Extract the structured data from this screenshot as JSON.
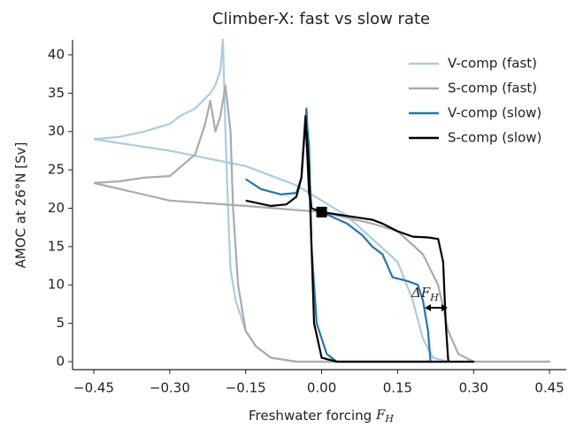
{
  "chart_data": {
    "type": "line",
    "title": "Climber-X: fast vs slow rate",
    "xlabel": "Freshwater forcing",
    "xlabel_symbol": "F",
    "xlabel_subscript": "H",
    "ylabel": "AMOC at 26°N [Sv]",
    "annotation": "Δ",
    "annotation_symbol": "F",
    "annotation_subscript": "H",
    "xlim": [
      -0.492,
      0.483
    ],
    "ylim": [
      -1.04,
      41.96
    ],
    "xticks": [
      {
        "value": -0.45,
        "label": "−0.45"
      },
      {
        "value": -0.3,
        "label": "−0.30"
      },
      {
        "value": -0.15,
        "label": "−0.15"
      },
      {
        "value": 0,
        "label": "0.00"
      },
      0.15,
      {
        "value": 0.3,
        "label": "0.30"
      },
      0.45
    ],
    "yticks": [
      0,
      5,
      10,
      15,
      20,
      25,
      30,
      35,
      40
    ],
    "legend": "upper right",
    "grid": false,
    "marker": {
      "x": 0,
      "y": 19.5,
      "color": "#000000"
    },
    "series": [
      {
        "name": "V-comp (fast)",
        "color": "#a9cce3",
        "x": [
          -0.45,
          -0.35,
          -0.3,
          -0.15,
          -0.05,
          0,
          0.05,
          0.1,
          0.15,
          0.18,
          0.2,
          0.22,
          0.25,
          0.45,
          -0.05,
          -0.1,
          -0.13,
          -0.15,
          -0.17,
          -0.18,
          -0.185,
          -0.19,
          -0.195,
          -0.2,
          -0.21,
          -0.22,
          -0.25,
          -0.28,
          -0.3,
          -0.35,
          -0.4,
          -0.45
        ],
        "values": [
          29,
          28,
          27.5,
          25.5,
          23,
          21,
          19,
          16,
          13,
          8,
          3,
          0.5,
          0,
          0,
          0,
          0.5,
          2,
          4,
          8,
          12,
          20,
          30,
          42,
          38,
          36,
          35,
          33,
          32,
          31,
          30,
          29.3,
          29
        ]
      },
      {
        "name": "S-comp (fast)",
        "color": "#aaaaaa",
        "x": [
          -0.45,
          -0.3,
          -0.15,
          0,
          0.1,
          0.15,
          0.2,
          0.23,
          0.25,
          0.27,
          0.3,
          0.45,
          0,
          -0.05,
          -0.1,
          -0.13,
          -0.15,
          -0.165,
          -0.175,
          -0.18,
          -0.19,
          -0.2,
          -0.21,
          -0.22,
          -0.23,
          -0.25,
          -0.3,
          -0.35,
          -0.4,
          -0.45
        ],
        "values": [
          23.3,
          21,
          20.3,
          19.5,
          18,
          17,
          14,
          10,
          4,
          1,
          0,
          0,
          0,
          0,
          0.5,
          2,
          4,
          10,
          20,
          30,
          36,
          32,
          30,
          34,
          31,
          27,
          24.2,
          24,
          23.5,
          23.3
        ]
      },
      {
        "name": "V-comp (slow)",
        "color": "#1f77b4",
        "x": [
          -0.15,
          -0.12,
          -0.08,
          -0.05,
          -0.04,
          -0.03,
          -0.025,
          -0.02,
          0,
          0.05,
          0.08,
          0.1,
          0.12,
          0.14,
          0.17,
          0.19,
          0.2,
          0.21,
          0.215,
          0.03,
          0.01,
          -0.01,
          -0.02,
          -0.025,
          -0.03
        ],
        "values": [
          23.8,
          22.5,
          21.8,
          22,
          24,
          33,
          25,
          20,
          19.5,
          18,
          16.5,
          15,
          14,
          11,
          10.5,
          10,
          8,
          4,
          0,
          0,
          1,
          5,
          15,
          28,
          32
        ]
      },
      {
        "name": "S-comp (slow)",
        "color": "#000000",
        "x": [
          -0.15,
          -0.1,
          -0.07,
          -0.05,
          -0.04,
          -0.032,
          -0.025,
          -0.02,
          0,
          0.05,
          0.1,
          0.12,
          0.15,
          0.18,
          0.21,
          0.23,
          0.24,
          0.245,
          0.25,
          0.3,
          0.03,
          0,
          -0.015,
          -0.02,
          -0.025,
          -0.03
        ],
        "values": [
          21,
          20.3,
          20.5,
          21.5,
          24,
          32,
          22,
          20,
          19.5,
          19,
          18.5,
          18,
          17,
          16.3,
          16.2,
          16,
          13,
          5,
          0,
          0,
          0,
          0.5,
          5,
          15,
          25,
          30
        ]
      }
    ]
  }
}
